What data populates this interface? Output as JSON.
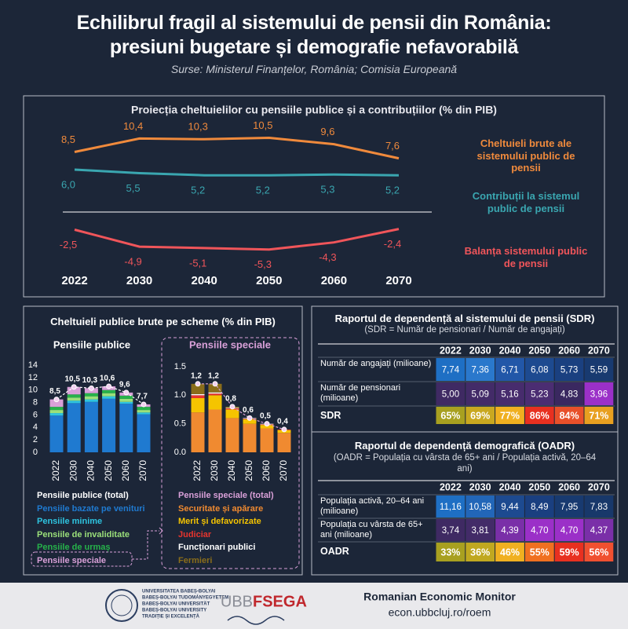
{
  "header": {
    "title": [
      "Echilibrul fragil al sistemului de pensii din România:",
      "presiuni bugetare și demografie nefavorabilă"
    ],
    "source": "Surse: Ministerul Finanțelor, România; Comisia Europeană"
  },
  "chart_data": [
    {
      "type": "line",
      "title": "Proiecția cheltuielilor cu pensiile publice și a contribuțiilor (% din PIB)",
      "categories": [
        "2022",
        "2030",
        "2040",
        "2050",
        "2060",
        "2070"
      ],
      "series": [
        {
          "name": "Cheltuieli brute ale sistemului public de pensii",
          "color": "#f08a3c",
          "values": [
            8.5,
            10.4,
            10.3,
            10.5,
            9.6,
            7.6
          ],
          "value_labels": [
            "8,5",
            "10,4",
            "10,3",
            "10,5",
            "9,6",
            "7,6"
          ]
        },
        {
          "name": "Contribuții la sistemul public de pensii",
          "color": "#3aa6b0",
          "values": [
            6.0,
            5.5,
            5.2,
            5.2,
            5.3,
            5.2
          ],
          "value_labels": [
            "6,0",
            "5,5",
            "5,2",
            "5,2",
            "5,3",
            "5,2"
          ]
        },
        {
          "name": "Balanța sistemului public de pensii",
          "color": "#f0555a",
          "values": [
            -2.5,
            -4.9,
            -5.1,
            -5.3,
            -4.3,
            -2.4
          ],
          "value_labels": [
            "-2,5",
            "-4,9",
            "-5,1",
            "-5,3",
            "-4,3",
            "-2,4"
          ]
        }
      ]
    },
    {
      "type": "stacked-bar",
      "title": "Pensiile publice",
      "categories": [
        "2022",
        "2030",
        "2040",
        "2050",
        "2060",
        "2070"
      ],
      "ylim": [
        0,
        14
      ],
      "yticks": [
        0,
        2,
        4,
        6,
        8,
        10,
        12,
        14
      ],
      "total": {
        "name": "Pensiile publice (total)",
        "color": "#ffffff",
        "values": [
          8.5,
          10.5,
          10.3,
          10.6,
          9.6,
          7.7
        ],
        "value_labels": [
          "8,5",
          "10,5",
          "10,3",
          "10,6",
          "9,6",
          "7,7"
        ]
      },
      "series": [
        {
          "name": "Pensiile bazate pe venituri",
          "color": "#1f7ad0",
          "values": [
            5.9,
            7.9,
            8.1,
            8.6,
            7.8,
            6.1
          ]
        },
        {
          "name": "Pensiile minime",
          "color": "#2ec4e0",
          "values": [
            0.4,
            0.4,
            0.4,
            0.4,
            0.3,
            0.3
          ]
        },
        {
          "name": "Pensiile de invaliditate",
          "color": "#9be07a",
          "values": [
            0.5,
            0.5,
            0.5,
            0.5,
            0.5,
            0.4
          ]
        },
        {
          "name": "Pensiile de urmaș",
          "color": "#26b24a",
          "values": [
            0.5,
            0.5,
            0.5,
            0.5,
            0.5,
            0.5
          ]
        },
        {
          "name": "Pensiile speciale",
          "color": "#d9a0d8",
          "values": [
            1.2,
            1.2,
            0.8,
            0.6,
            0.5,
            0.4
          ]
        }
      ]
    },
    {
      "type": "stacked-bar",
      "title": "Pensiile speciale",
      "categories": [
        "2022",
        "2030",
        "2040",
        "2050",
        "2060",
        "2070"
      ],
      "ylim": [
        0,
        1.5
      ],
      "yticks": [
        {
          "value": 0,
          "label": "0.0"
        },
        0.5,
        {
          "value": 1,
          "label": "1.0"
        },
        1.5
      ],
      "total": {
        "name": "Pensiile speciale (total)",
        "color": "#d9a0d8",
        "values": [
          1.2,
          1.2,
          0.8,
          0.6,
          0.5,
          0.4
        ],
        "value_labels": [
          "1,2",
          "1,2",
          "0,8",
          "0,6",
          "0,5",
          "0,4"
        ]
      },
      "series": [
        {
          "name": "Securitate și apărare",
          "color": "#f08a30",
          "values": [
            0.7,
            0.75,
            0.6,
            0.5,
            0.42,
            0.34
          ]
        },
        {
          "name": "Merit și defavorizate",
          "color": "#f5c400",
          "values": [
            0.25,
            0.25,
            0.15,
            0.08,
            0.06,
            0.05
          ]
        },
        {
          "name": "Judiciar",
          "color": "#e8352e",
          "values": [
            0.05,
            0.03,
            0.02,
            0.01,
            0.01,
            0.01
          ]
        },
        {
          "name": "Funcționari publici",
          "color": "#ffffff",
          "values": [
            0.02,
            0.02,
            0.01,
            0.01,
            0.01,
            0
          ]
        },
        {
          "name": "Fermieri",
          "color": "#8a6d1a",
          "values": [
            0.18,
            0.15,
            0.02,
            0,
            0,
            0
          ]
        }
      ]
    }
  ],
  "schemes_panel": {
    "title": "Cheltuieli publice brute pe scheme (% din PIB)"
  },
  "tables": [
    {
      "title": "Raportul de dependență al sistemului de pensii (SDR)",
      "subtitle": "(SDR = Număr de pensionari / Număr de angajați)",
      "columns": [
        "2022",
        "2030",
        "2040",
        "2050",
        "2060",
        "2070"
      ],
      "rows": [
        {
          "label": "Număr de angajați (milioane)",
          "cells": [
            "7,74",
            "7,36",
            "6,71",
            "6,08",
            "5,73",
            "5,59"
          ],
          "colors": [
            "#1e6fc4",
            "#2a78cc",
            "#2257a8",
            "#1d4a90",
            "#1a4080",
            "#183a70"
          ]
        },
        {
          "label": "Număr de pensionari (milioane)",
          "cells": [
            "5,00",
            "5,09",
            "5,16",
            "5,23",
            "4,83",
            "3,96"
          ],
          "colors": [
            "#3f2a63",
            "#432b68",
            "#472c6d",
            "#4b2d72",
            "#3a2860",
            "#9b30c8"
          ]
        },
        {
          "label": "SDR",
          "cells": [
            "65%",
            "69%",
            "77%",
            "86%",
            "84%",
            "71%"
          ],
          "colors": [
            "#a8a020",
            "#c9a820",
            "#f0b020",
            "#e83020",
            "#e8502a",
            "#e8a020"
          ]
        }
      ]
    },
    {
      "title": "Raportul de dependență demografică (OADR)",
      "subtitle": "(OADR = Populația cu vârsta de 65+ ani / Populația activă, 20–64 ani)",
      "columns": [
        "2022",
        "2030",
        "2040",
        "2050",
        "2060",
        "2070"
      ],
      "rows": [
        {
          "label": "Populația activă, 20–64 ani (milioane)",
          "cells": [
            "11,16",
            "10,58",
            "9,44",
            "8,49",
            "7,95",
            "7,83"
          ],
          "colors": [
            "#1e6fc4",
            "#2266b8",
            "#1d4a90",
            "#1a3f80",
            "#183a70",
            "#18386a"
          ]
        },
        {
          "label": "Populația cu vârsta de 65+ ani (milioane)",
          "cells": [
            "3,74",
            "3,81",
            "4,39",
            "4,70",
            "4,70",
            "4,37"
          ],
          "colors": [
            "#3f2a63",
            "#432b68",
            "#7a2fa8",
            "#9b30c8",
            "#9b30c8",
            "#7a2fa8"
          ]
        },
        {
          "label": "OADR",
          "cells": [
            "33%",
            "36%",
            "46%",
            "55%",
            "59%",
            "56%"
          ],
          "colors": [
            "#a8a020",
            "#c0a820",
            "#f0b020",
            "#f07020",
            "#e83020",
            "#f05030"
          ]
        }
      ]
    }
  ],
  "footer": {
    "university": [
      "UNIVERSITATEA BABEȘ-BOLYAI",
      "BABEȘ-BOLYAI TUDOMÁNYEGYETEM",
      "BABEȘ-BOLYAI UNIVERSITÄT",
      "BABEȘ-BOLYAI UNIVERSITY",
      "TRADIȚIE ȘI EXCELENȚĂ"
    ],
    "logo": [
      "UBB",
      "FSEGA"
    ],
    "monitor": "Romanian Economic Monitor",
    "url": "econ.ubbcluj.ro/roem"
  }
}
